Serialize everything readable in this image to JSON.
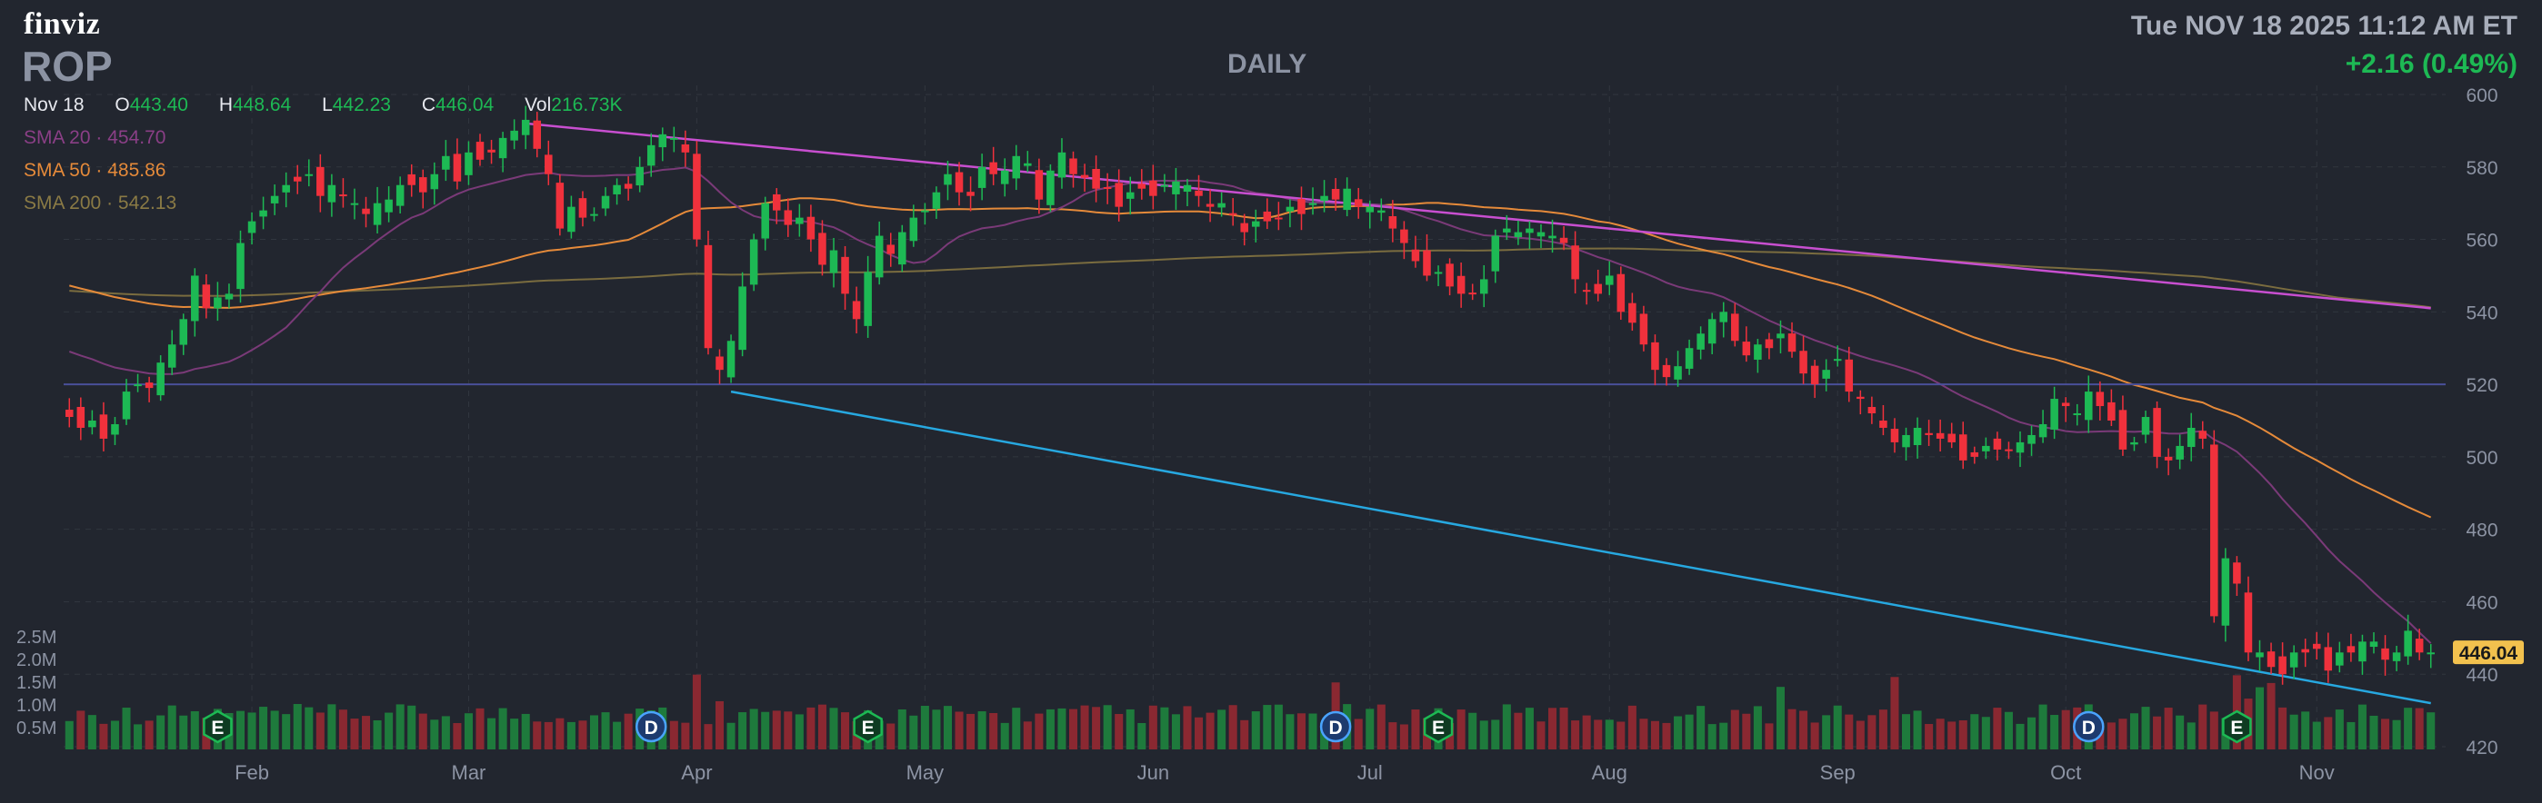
{
  "header": {
    "logo": "finviz",
    "ticker": "ROP",
    "period": "DAILY",
    "datetime": "Tue NOV 18 2025 11:12 AM ET",
    "change": "+2.16 (0.49%)"
  },
  "ohlc": {
    "date": "Nov 18",
    "o_label": "O",
    "o": "443.40",
    "h_label": "H",
    "h": "448.64",
    "l_label": "L",
    "l": "442.23",
    "c_label": "C",
    "c": "446.04",
    "vol_label": "Vol",
    "vol": "216.73K"
  },
  "sma": [
    {
      "label": "SMA 20",
      "value": "454.70",
      "color": "#8a3f86"
    },
    {
      "label": "SMA 50",
      "value": "485.86",
      "color": "#e58a3a"
    },
    {
      "label": "SMA 200",
      "value": "542.13",
      "color": "#8a7a45"
    }
  ],
  "colors": {
    "up": "#1db954",
    "down": "#f0313c",
    "up_vol": "#1e7a3c",
    "down_vol": "#8a2831",
    "sma20": "#7a3a78",
    "sma50": "#e58a3a",
    "sma200": "#7a6c3f",
    "resistance": "#c84fd0",
    "support": "#27a8e0",
    "horizontal": "#4a4f9a",
    "price_tag": "#f2c14e"
  },
  "chart_data": {
    "type": "candlestick",
    "price_axis": {
      "ticks": [
        "600",
        "580",
        "560",
        "540",
        "520",
        "500",
        "480",
        "460",
        "440",
        "420"
      ],
      "ylim": [
        420,
        600
      ]
    },
    "volume_axis": {
      "ticks": [
        "2.5M",
        "2.0M",
        "1.5M",
        "1.0M",
        "0.5M"
      ],
      "ylim": [
        0,
        2.5
      ]
    },
    "month_labels": [
      "Feb",
      "Mar",
      "Apr",
      "May",
      "Jun",
      "Jul",
      "Aug",
      "Sep",
      "Oct",
      "Nov"
    ],
    "month_index": [
      16,
      35,
      55,
      75,
      95,
      114,
      135,
      155,
      175,
      197
    ],
    "last_price_label": "446.04",
    "sessions": 208,
    "close": [
      511,
      508,
      510,
      505,
      509,
      518,
      520,
      519,
      526,
      531,
      538,
      550,
      541,
      544,
      545,
      559,
      565,
      568,
      572,
      575,
      576,
      578,
      572,
      575,
      572,
      570,
      567,
      570,
      571,
      575,
      575,
      573,
      578,
      583,
      576,
      584,
      582,
      584,
      588,
      590,
      593,
      585,
      578,
      563,
      569,
      566,
      567,
      572,
      575,
      574,
      580,
      586,
      589,
      588,
      584,
      560,
      530,
      524,
      532,
      547,
      560,
      570,
      568,
      564,
      566,
      560,
      553,
      557,
      545,
      538,
      551,
      561,
      556,
      562,
      566,
      568,
      573,
      578,
      573,
      572,
      580,
      578,
      579,
      583,
      581,
      571,
      579,
      584,
      578,
      577,
      574,
      574,
      569,
      573,
      574,
      572,
      575,
      576,
      575,
      572,
      569,
      570,
      567,
      562,
      565,
      565,
      566,
      569,
      567,
      570,
      572,
      571,
      574,
      569,
      569,
      568,
      563,
      559,
      554,
      550,
      551,
      547,
      545,
      545,
      549,
      561,
      563,
      562,
      563,
      562,
      561,
      559,
      549,
      546,
      545,
      550,
      540,
      537,
      531,
      524,
      522,
      525,
      530,
      534,
      538,
      540,
      532,
      528,
      531,
      530,
      534,
      529,
      523,
      520,
      524,
      527,
      518,
      516,
      512,
      508,
      504,
      506,
      508,
      506,
      505,
      504,
      499,
      500,
      503,
      502,
      502,
      504,
      506,
      509,
      516,
      514,
      512,
      518,
      514,
      510,
      502,
      504,
      511,
      500,
      499,
      503,
      508,
      505,
      456,
      472,
      465,
      446,
      446,
      442,
      440,
      446,
      446,
      447,
      441,
      446,
      446,
      449,
      449,
      444,
      446,
      452,
      446,
      446
    ],
    "volume_relative": "heights estimated from bars; roughly 0.6M–1.4M typical, spikes near Apr, Jul, Oct and late Oct",
    "events": [
      {
        "label": "E",
        "index": 13
      },
      {
        "label": "D",
        "index": 51
      },
      {
        "label": "E",
        "index": 70
      },
      {
        "label": "D",
        "index": 111
      },
      {
        "label": "E",
        "index": 120
      },
      {
        "label": "D",
        "index": 177
      },
      {
        "label": "E",
        "index": 190
      }
    ],
    "title": "",
    "xlabel": "",
    "ylabel": ""
  }
}
